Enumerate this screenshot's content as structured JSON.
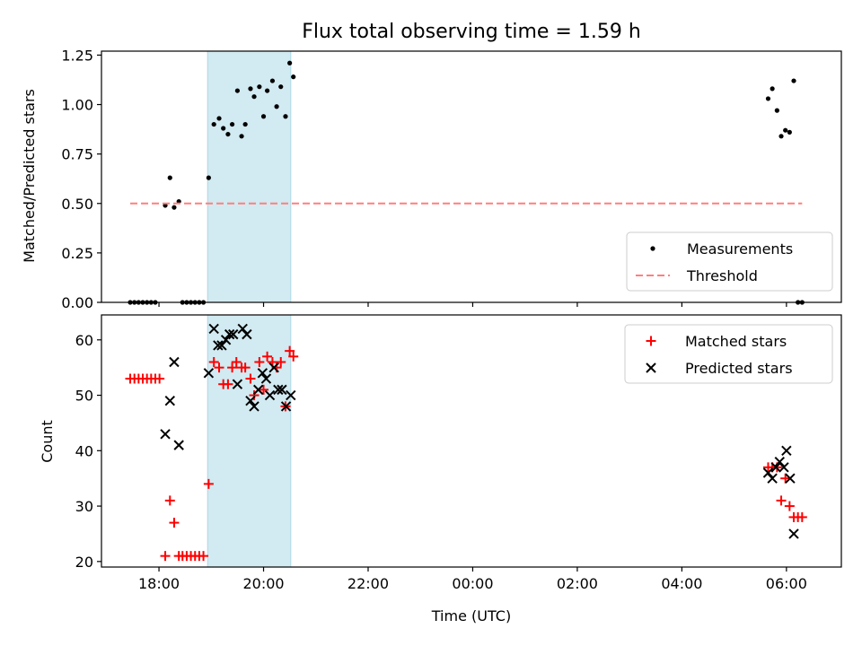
{
  "chart_data": {
    "title": "Flux total observing time = 1.59 h",
    "x_axis": {
      "label": "Time (UTC)",
      "unit": "hours since 18:00 UTC",
      "range": [
        -1.1,
        13.05
      ],
      "ticks": [
        {
          "v": 0,
          "label": "18:00"
        },
        {
          "v": 2,
          "label": "20:00"
        },
        {
          "v": 4,
          "label": "22:00"
        },
        {
          "v": 6,
          "label": "00:00"
        },
        {
          "v": 8,
          "label": "02:00"
        },
        {
          "v": 10,
          "label": "04:00"
        },
        {
          "v": 12,
          "label": "06:00"
        }
      ]
    },
    "colors": {
      "measurement": "#000000",
      "threshold": "#ff7f7f",
      "matched": "#ff0000",
      "predicted": "#000000",
      "span": "#add8e6"
    },
    "highlight_span": {
      "start": 0.93,
      "end": 2.52
    },
    "panels": [
      {
        "type": "scatter",
        "ylabel": "Matched/Predicted stars",
        "ylim": [
          0,
          1.27
        ],
        "yticks": [
          {
            "v": 0,
            "label": "0.00"
          },
          {
            "v": 0.25,
            "label": "0.25"
          },
          {
            "v": 0.5,
            "label": "0.50"
          },
          {
            "v": 0.75,
            "label": "0.75"
          },
          {
            "v": 1.0,
            "label": "1.00"
          },
          {
            "v": 1.25,
            "label": "1.25"
          }
        ],
        "legend": {
          "position": "lower right",
          "entries": [
            "Measurements",
            "Threshold"
          ]
        },
        "series": [
          {
            "name": "Measurements",
            "marker": "dot",
            "points": [
              [
                -0.55,
                0
              ],
              [
                -0.47,
                0
              ],
              [
                -0.39,
                0
              ],
              [
                -0.31,
                0
              ],
              [
                -0.23,
                0
              ],
              [
                -0.15,
                0
              ],
              [
                -0.07,
                0
              ],
              [
                0.12,
                0.49
              ],
              [
                0.21,
                0.63
              ],
              [
                0.29,
                0.48
              ],
              [
                0.38,
                0.51
              ],
              [
                0.45,
                0
              ],
              [
                0.53,
                0
              ],
              [
                0.61,
                0
              ],
              [
                0.69,
                0
              ],
              [
                0.77,
                0
              ],
              [
                0.85,
                0
              ],
              [
                0.95,
                0.63
              ],
              [
                1.05,
                0.9
              ],
              [
                1.15,
                0.93
              ],
              [
                1.23,
                0.88
              ],
              [
                1.32,
                0.85
              ],
              [
                1.4,
                0.9
              ],
              [
                1.5,
                1.07
              ],
              [
                1.58,
                0.84
              ],
              [
                1.65,
                0.9
              ],
              [
                1.75,
                1.08
              ],
              [
                1.82,
                1.04
              ],
              [
                1.92,
                1.09
              ],
              [
                2.0,
                0.94
              ],
              [
                2.07,
                1.07
              ],
              [
                2.17,
                1.12
              ],
              [
                2.25,
                0.99
              ],
              [
                2.33,
                1.09
              ],
              [
                2.42,
                0.94
              ],
              [
                2.5,
                1.21
              ],
              [
                2.57,
                1.14
              ],
              [
                11.65,
                1.03
              ],
              [
                11.73,
                1.08
              ],
              [
                11.82,
                0.97
              ],
              [
                11.9,
                0.84
              ],
              [
                11.98,
                0.87
              ],
              [
                12.06,
                0.86
              ],
              [
                12.14,
                1.12
              ],
              [
                12.22,
                0
              ],
              [
                12.3,
                0
              ]
            ]
          },
          {
            "name": "Threshold",
            "style": "dashed-line",
            "points": [
              [
                -0.55,
                0.5
              ],
              [
                12.3,
                0.5
              ]
            ]
          }
        ]
      },
      {
        "type": "scatter",
        "ylabel": "Count",
        "ylim": [
          19,
          64.5
        ],
        "yticks": [
          {
            "v": 20,
            "label": "20"
          },
          {
            "v": 30,
            "label": "30"
          },
          {
            "v": 40,
            "label": "40"
          },
          {
            "v": 50,
            "label": "50"
          },
          {
            "v": 60,
            "label": "60"
          }
        ],
        "legend": {
          "position": "upper right",
          "entries": [
            "Matched stars",
            "Predicted stars"
          ]
        },
        "series": [
          {
            "name": "Matched stars",
            "marker": "plus",
            "points": [
              [
                -0.55,
                53
              ],
              [
                -0.47,
                53
              ],
              [
                -0.39,
                53
              ],
              [
                -0.31,
                53
              ],
              [
                -0.23,
                53
              ],
              [
                -0.15,
                53
              ],
              [
                -0.07,
                53
              ],
              [
                0.01,
                53
              ],
              [
                0.12,
                21
              ],
              [
                0.21,
                31
              ],
              [
                0.29,
                27
              ],
              [
                0.38,
                21
              ],
              [
                0.45,
                21
              ],
              [
                0.53,
                21
              ],
              [
                0.61,
                21
              ],
              [
                0.69,
                21
              ],
              [
                0.77,
                21
              ],
              [
                0.85,
                21
              ],
              [
                0.95,
                34
              ],
              [
                1.05,
                56
              ],
              [
                1.15,
                55
              ],
              [
                1.23,
                52
              ],
              [
                1.32,
                52
              ],
              [
                1.4,
                55
              ],
              [
                1.48,
                56
              ],
              [
                1.58,
                55
              ],
              [
                1.65,
                55
              ],
              [
                1.75,
                53
              ],
              [
                1.82,
                50
              ],
              [
                1.92,
                56
              ],
              [
                2.0,
                51
              ],
              [
                2.07,
                57
              ],
              [
                2.17,
                56
              ],
              [
                2.25,
                55
              ],
              [
                2.33,
                56
              ],
              [
                2.42,
                48
              ],
              [
                2.5,
                58
              ],
              [
                2.57,
                57
              ],
              [
                11.65,
                37
              ],
              [
                11.73,
                37
              ],
              [
                11.82,
                37
              ],
              [
                11.9,
                31
              ],
              [
                11.98,
                35
              ],
              [
                12.06,
                30
              ],
              [
                12.14,
                28
              ],
              [
                12.22,
                28
              ],
              [
                12.3,
                28
              ]
            ]
          },
          {
            "name": "Predicted stars",
            "marker": "x",
            "points": [
              [
                0.12,
                43
              ],
              [
                0.21,
                49
              ],
              [
                0.29,
                56
              ],
              [
                0.38,
                41
              ],
              [
                0.95,
                54
              ],
              [
                1.05,
                62
              ],
              [
                1.13,
                59
              ],
              [
                1.2,
                59
              ],
              [
                1.28,
                60
              ],
              [
                1.35,
                61
              ],
              [
                1.42,
                61
              ],
              [
                1.5,
                52
              ],
              [
                1.6,
                62
              ],
              [
                1.68,
                61
              ],
              [
                1.75,
                49
              ],
              [
                1.82,
                48
              ],
              [
                1.9,
                51
              ],
              [
                1.98,
                54
              ],
              [
                2.05,
                53
              ],
              [
                2.12,
                50
              ],
              [
                2.2,
                55
              ],
              [
                2.28,
                51
              ],
              [
                2.35,
                51
              ],
              [
                2.43,
                48
              ],
              [
                2.52,
                50
              ],
              [
                11.65,
                36
              ],
              [
                11.73,
                35
              ],
              [
                11.8,
                37
              ],
              [
                11.87,
                38
              ],
              [
                11.95,
                37
              ],
              [
                12.0,
                40
              ],
              [
                12.07,
                35
              ],
              [
                12.14,
                25
              ]
            ]
          }
        ]
      }
    ]
  }
}
